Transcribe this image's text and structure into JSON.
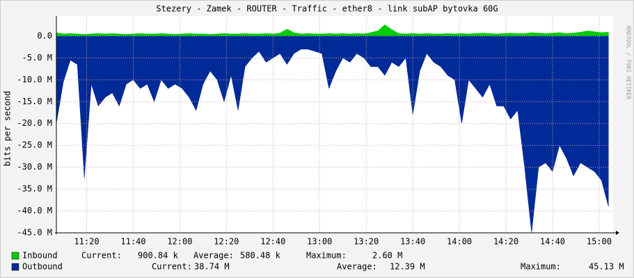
{
  "chart_data": {
    "type": "area",
    "title": "Stezery - Zamek - ROUTER - Traffic - ether8 - link subAP bytovka 60G",
    "y_label": "bits per second",
    "watermark": "RRDTOOL / TOBI OETIKER",
    "xlim": [
      667,
      906
    ],
    "xticks": [
      {
        "value": 680,
        "label": "11:20"
      },
      {
        "value": 700,
        "label": "11:40"
      },
      {
        "value": 720,
        "label": "12:00"
      },
      {
        "value": 740,
        "label": "12:20"
      },
      {
        "value": 760,
        "label": "12:40"
      },
      {
        "value": 780,
        "label": "13:00"
      },
      {
        "value": 800,
        "label": "13:20"
      },
      {
        "value": 820,
        "label": "13:40"
      },
      {
        "value": 840,
        "label": "14:00"
      },
      {
        "value": 860,
        "label": "14:20"
      },
      {
        "value": 880,
        "label": "14:40"
      },
      {
        "value": 900,
        "label": "15:00"
      }
    ],
    "ylim": [
      -45,
      4.6
    ],
    "yticks": [
      {
        "value": 0,
        "label": "0.0"
      },
      {
        "value": -5,
        "label": "-5.0 M"
      },
      {
        "value": -10,
        "label": "-10.0 M"
      },
      {
        "value": -15,
        "label": "-15.0 M"
      },
      {
        "value": -20,
        "label": "-20.0 M"
      },
      {
        "value": -25,
        "label": "-25.0 M"
      },
      {
        "value": -30,
        "label": "-30.0 M"
      },
      {
        "value": -35,
        "label": "-35.0 M"
      },
      {
        "value": -40,
        "label": "-40.0 M"
      },
      {
        "value": -45,
        "label": "-45.0 M"
      }
    ],
    "grid": true,
    "x": [
      667,
      670,
      673,
      676,
      679,
      682,
      685,
      688,
      691,
      694,
      697,
      700,
      703,
      706,
      709,
      712,
      715,
      718,
      721,
      724,
      727,
      730,
      733,
      736,
      739,
      742,
      745,
      748,
      751,
      754,
      757,
      760,
      763,
      766,
      769,
      772,
      775,
      778,
      781,
      784,
      787,
      790,
      793,
      796,
      799,
      802,
      805,
      808,
      811,
      814,
      817,
      820,
      823,
      826,
      829,
      832,
      835,
      838,
      841,
      844,
      847,
      850,
      853,
      856,
      859,
      862,
      865,
      868,
      871,
      874,
      877,
      880,
      883,
      886,
      889,
      892,
      895,
      898,
      901,
      904
    ],
    "series": [
      {
        "name": "Inbound",
        "color": "#00cc00",
        "values": [
          0.8,
          0.5,
          0.6,
          0.5,
          0.4,
          0.5,
          0.6,
          0.5,
          0.6,
          0.5,
          0.4,
          0.5,
          0.6,
          0.5,
          0.5,
          0.6,
          0.5,
          0.4,
          0.5,
          0.6,
          0.5,
          0.5,
          0.4,
          0.5,
          0.6,
          0.5,
          0.5,
          0.6,
          0.5,
          0.5,
          0.6,
          0.5,
          0.7,
          1.6,
          0.8,
          0.5,
          0.6,
          0.5,
          0.5,
          0.6,
          0.5,
          0.6,
          0.5,
          0.6,
          0.5,
          0.8,
          1.2,
          2.6,
          1.5,
          0.6,
          0.5,
          0.6,
          0.5,
          0.6,
          0.5,
          0.5,
          0.6,
          0.5,
          0.6,
          0.5,
          0.6,
          0.7,
          0.6,
          0.5,
          0.6,
          0.7,
          0.6,
          0.6,
          0.8,
          0.7,
          0.6,
          0.7,
          0.8,
          0.6,
          0.7,
          0.9,
          1.2,
          1.0,
          0.8,
          0.9
        ],
        "stats": [
          "900.84 k",
          "580.48 k",
          "2.60 M"
        ]
      },
      {
        "name": "Outbound",
        "color": "#002a97",
        "values": [
          -20,
          -10.5,
          -5.5,
          -6.5,
          -32.5,
          -11,
          -16,
          -14,
          -13,
          -16,
          -11,
          -10,
          -12,
          -11,
          -15,
          -10,
          -12,
          -11,
          -12,
          -14,
          -17,
          -11,
          -8,
          -10,
          -15,
          -9,
          -17,
          -7,
          -5,
          -3.5,
          -6,
          -5,
          -4,
          -6.5,
          -4,
          -3,
          -3,
          -3.5,
          -4,
          -12,
          -8,
          -5,
          -6,
          -4,
          -5,
          -7,
          -7,
          -9,
          -6,
          -7,
          -5,
          -18,
          -8,
          -4,
          -6,
          -7,
          -9,
          -10,
          -20,
          -10,
          -12,
          -14,
          -11,
          -16,
          -16,
          -19,
          -17,
          -30,
          -45,
          -30,
          -29,
          -31,
          -25,
          -28,
          -32,
          -29,
          -30,
          -31,
          -33,
          -39
        ],
        "stats": [
          "38.74 M",
          "12.39 M",
          "45.13 M"
        ]
      }
    ],
    "stat_labels": [
      "Current:",
      "Average:",
      "Maximum:"
    ]
  }
}
